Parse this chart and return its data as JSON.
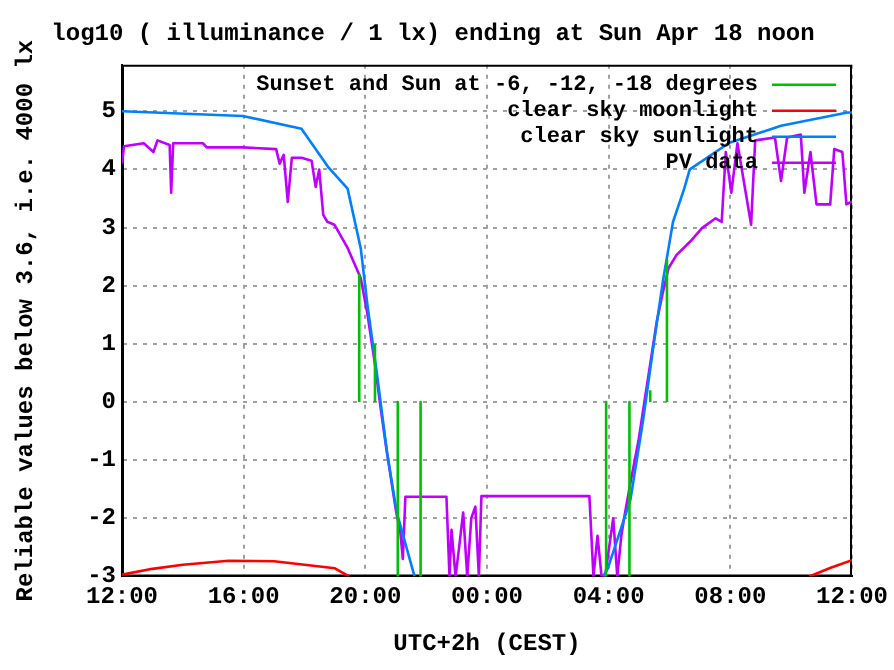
{
  "chart_data": {
    "type": "line",
    "title": "log10 ( illuminance / 1 lx) ending at Sun Apr 18 noon",
    "xlabel": "UTC+2h (CEST)",
    "ylabel": "Reliable values below 3.6, i.e. 4000 lx",
    "xlim": [
      "--04-17T12:00",
      "--04-18T12:00"
    ],
    "xticks": [
      {
        "value": "--04-17T12:00",
        "label": "12:00"
      },
      {
        "value": "--04-17T16:00",
        "label": "16:00"
      },
      {
        "value": "--04-17T20:00",
        "label": "20:00"
      },
      {
        "value": "--04-18T00:00",
        "label": "00:00"
      },
      {
        "value": "--04-18T04:00",
        "label": "04:00"
      },
      {
        "value": "--04-18T08:00",
        "label": "08:00"
      },
      {
        "value": "--04-18T12:00",
        "label": "12:00"
      }
    ],
    "ylim": [
      -3,
      5.8
    ],
    "yticks": [
      -3,
      -2,
      -1,
      0,
      1,
      2,
      3,
      4,
      5
    ],
    "grid": true,
    "legend": "top right",
    "marker": "none",
    "line_style": "solid",
    "series": [
      {
        "name": "Sunset and Sun at -6, -12, -18 degrees",
        "color": "#00c000",
        "x": [
          "--04-17T19:48",
          "--04-17T19:48",
          null,
          "--04-17T20:19",
          "--04-17T20:19",
          null,
          "--04-17T21:04",
          "--04-17T21:04",
          null,
          "--04-17T21:49",
          "--04-17T21:49",
          null,
          "--04-18T03:55",
          "--04-18T03:55",
          null,
          "--04-18T04:41",
          "--04-18T04:41",
          null,
          "--04-18T05:22",
          "--04-18T05:22",
          null,
          "--04-18T05:55",
          "--04-18T05:55"
        ],
        "values": [
          0,
          2.2,
          null,
          0,
          1.0,
          null,
          0,
          -3,
          null,
          0,
          -3,
          null,
          0,
          -3,
          null,
          0,
          -3,
          null,
          0,
          0.2,
          null,
          0,
          2.45
        ]
      },
      {
        "name": "clear sky moonlight",
        "color": "#ff0000",
        "x": [
          "--04-17T12:00",
          "--04-17T13:00",
          "--04-17T14:00",
          "--04-17T15:30",
          "--04-17T17:00",
          "--04-17T18:00",
          "--04-17T19:00",
          "--04-17T19:28",
          null,
          "--04-18T10:36",
          "--04-18T11:18",
          "--04-18T12:00"
        ],
        "values": [
          -2.97,
          -2.87,
          -2.8,
          -2.73,
          -2.74,
          -2.8,
          -2.86,
          -3,
          null,
          -3,
          -2.85,
          -2.72
        ]
      },
      {
        "name": "clear sky sunlight",
        "color": "#0080ff",
        "x": [
          "--04-17T12:00",
          "--04-17T15:58",
          "--04-17T17:54",
          "--04-17T18:46",
          "--04-17T19:25",
          "--04-17T19:51",
          "--04-17T20:04",
          "--04-17T20:23",
          "--04-17T20:43",
          "--04-17T21:02",
          "--04-17T21:37",
          null,
          "--04-18T03:49",
          "--04-18T03:58",
          "--04-18T04:43",
          "--04-18T05:08",
          "--04-18T05:28",
          "--04-18T05:47",
          "--04-18T06:07",
          "--04-18T06:29",
          "--04-18T06:40",
          "--04-18T07:58",
          "--04-18T09:40",
          "--04-18T11:51",
          "--04-18T12:00"
        ],
        "values": [
          5.0,
          4.92,
          4.7,
          4.05,
          3.67,
          2.64,
          1.68,
          0.48,
          -0.88,
          -1.9,
          -3,
          null,
          -3,
          -2.87,
          -1.68,
          -0.31,
          0.94,
          2.08,
          3.1,
          3.67,
          4.0,
          4.46,
          4.75,
          4.98,
          4.98
        ]
      },
      {
        "name": "PV data",
        "color": "#c000ff",
        "x": [
          "--04-17T12:00",
          "--04-17T12:04",
          "--04-17T12:43",
          "--04-17T13:02",
          "--04-17T13:10",
          "--04-17T13:34",
          "--04-17T13:37",
          "--04-17T13:41",
          "--04-17T14:40",
          "--04-17T14:47",
          "--04-17T15:58",
          "--04-17T17:04",
          "--04-17T17:11",
          "--04-17T17:19",
          "--04-17T17:27",
          "--04-17T17:35",
          "--04-17T17:54",
          "--04-17T18:14",
          "--04-17T18:22",
          "--04-17T18:29",
          "--04-17T18:37",
          "--04-17T18:45",
          "--04-17T18:59",
          "--04-17T19:25",
          "--04-17T19:51",
          "--04-17T20:04",
          "--04-17T20:18",
          "--04-17T20:30",
          "--04-17T20:41",
          "--04-17T20:53",
          "--04-17T21:01",
          "--04-17T21:09",
          "--04-17T21:14",
          "--04-17T21:19",
          "--04-17T22:40",
          "--04-17T22:46",
          "--04-17T22:50",
          "--04-17T22:58",
          "--04-17T23:05",
          "--04-17T23:13",
          "--04-17T23:21",
          "--04-17T23:29",
          "--04-17T23:37",
          "--04-17T23:44",
          "--04-17T23:49",
          "--04-18T03:22",
          "--04-18T03:30",
          "--04-18T03:38",
          "--04-18T03:46",
          "--04-18T03:53",
          "--04-18T04:09",
          "--04-18T04:17",
          "--04-18T04:25",
          "--04-18T04:30",
          "--04-18T04:44",
          "--04-18T04:59",
          "--04-18T05:11",
          "--04-18T05:23",
          "--04-18T05:35",
          "--04-18T05:46",
          "--04-18T05:58",
          "--04-18T06:14",
          "--04-18T06:41",
          "--04-18T07:04",
          "--04-18T07:31",
          "--04-18T07:43",
          "--04-18T07:51",
          "--04-18T08:02",
          "--04-18T08:14",
          "--04-18T08:41",
          "--04-18T08:49",
          "--04-18T09:28",
          "--04-18T09:40",
          "--04-18T09:52",
          "--04-18T10:19",
          "--04-18T10:26",
          "--04-18T10:38",
          "--04-18T10:50",
          "--04-18T11:17",
          "--04-18T11:25",
          "--04-18T11:41",
          "--04-18T11:49",
          "--04-18T12:00"
        ],
        "values": [
          4.1,
          4.4,
          4.45,
          4.3,
          4.5,
          4.42,
          3.6,
          4.45,
          4.45,
          4.38,
          4.38,
          4.35,
          4.1,
          4.25,
          3.44,
          4.2,
          4.2,
          4.15,
          3.7,
          4.0,
          3.22,
          3.1,
          3.05,
          2.65,
          2.13,
          1.52,
          0.71,
          -0.09,
          -0.77,
          -1.45,
          -1.9,
          -2.24,
          -2.7,
          -1.63,
          -1.63,
          -3,
          -2.2,
          -3,
          -2.5,
          -1.9,
          -3,
          -2,
          -1.8,
          -3,
          -1.62,
          -1.62,
          -3,
          -2.3,
          -3,
          -3,
          -2.0,
          -3,
          -2.3,
          -2.02,
          -1.34,
          -0.66,
          0.03,
          0.71,
          1.39,
          1.85,
          2.3,
          2.53,
          2.76,
          2.99,
          3.16,
          3.1,
          4.3,
          3.6,
          4.45,
          3.05,
          4.5,
          4.55,
          3.8,
          4.55,
          4.6,
          3.6,
          4.3,
          3.4,
          3.4,
          4.35,
          4.3,
          3.4,
          3.45
        ]
      }
    ]
  }
}
